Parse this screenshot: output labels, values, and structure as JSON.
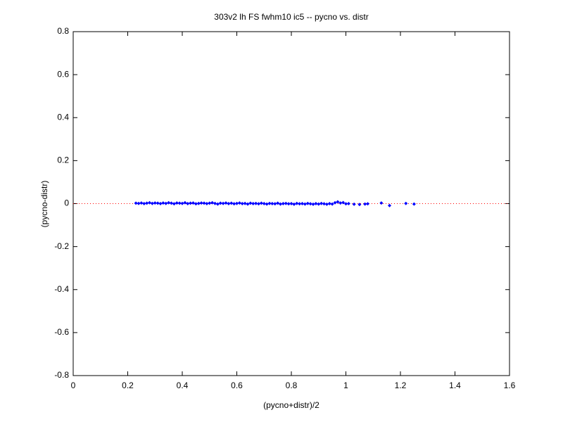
{
  "chart_data": {
    "type": "scatter",
    "title": "303v2 lh FS fwhm10 ic5 -- pycno vs. distr",
    "x_label": "(pycno+distr)/2",
    "y_label": "(pycno-distr)",
    "color": "#0000ff",
    "reference_line": {
      "y": 0,
      "color": "#ff0000"
    },
    "xlim": [
      0,
      1.6
    ],
    "xticks": [
      0,
      0.2,
      0.4,
      0.6,
      0.8,
      1,
      1.2,
      1.4,
      1.6
    ],
    "ylim": [
      -0.8,
      0.8
    ],
    "yticks": [
      -0.8,
      -0.6,
      -0.4,
      -0.2,
      0,
      0.2,
      0.4,
      0.6,
      0.8
    ],
    "x": [
      0.23,
      0.24,
      0.25,
      0.26,
      0.27,
      0.28,
      0.29,
      0.3,
      0.31,
      0.32,
      0.33,
      0.34,
      0.35,
      0.36,
      0.37,
      0.38,
      0.39,
      0.4,
      0.41,
      0.42,
      0.43,
      0.44,
      0.45,
      0.46,
      0.47,
      0.48,
      0.49,
      0.5,
      0.51,
      0.52,
      0.53,
      0.54,
      0.55,
      0.56,
      0.57,
      0.58,
      0.59,
      0.6,
      0.61,
      0.62,
      0.63,
      0.64,
      0.65,
      0.66,
      0.67,
      0.68,
      0.69,
      0.7,
      0.71,
      0.72,
      0.73,
      0.74,
      0.75,
      0.76,
      0.77,
      0.78,
      0.79,
      0.8,
      0.81,
      0.82,
      0.83,
      0.84,
      0.85,
      0.86,
      0.87,
      0.88,
      0.89,
      0.9,
      0.91,
      0.92,
      0.93,
      0.94,
      0.95,
      0.96,
      0.97,
      0.98,
      0.99,
      1.0,
      1.01,
      1.03,
      1.05,
      1.07,
      1.08,
      1.13,
      1.16,
      1.22,
      1.25
    ],
    "values": [
      0.002,
      0.001,
      0.003,
      0.0,
      0.002,
      0.004,
      0.001,
      0.003,
      0.002,
      0.0,
      0.003,
      0.001,
      0.004,
      0.002,
      -0.001,
      0.003,
      0.002,
      0.001,
      0.004,
      0.0,
      0.002,
      0.003,
      -0.001,
      0.001,
      0.003,
      0.002,
      0.0,
      0.002,
      0.004,
      0.001,
      -0.002,
      0.002,
      0.001,
      0.003,
      0.0,
      0.002,
      -0.001,
      0.001,
      0.003,
      0.0,
      0.001,
      -0.002,
      0.002,
      0.0,
      0.001,
      -0.001,
      0.002,
      0.0,
      -0.002,
      0.001,
      0.0,
      -0.001,
      0.002,
      -0.002,
      0.0,
      0.001,
      -0.001,
      0.0,
      -0.003,
      0.001,
      -0.001,
      0.0,
      -0.002,
      0.001,
      -0.001,
      -0.003,
      0.0,
      -0.002,
      0.001,
      -0.001,
      -0.003,
      0.0,
      -0.002,
      0.004,
      0.008,
      0.003,
      0.005,
      -0.001,
      0.0,
      -0.003,
      -0.004,
      -0.002,
      -0.001,
      0.003,
      -0.009,
      0.001,
      -0.002
    ]
  }
}
